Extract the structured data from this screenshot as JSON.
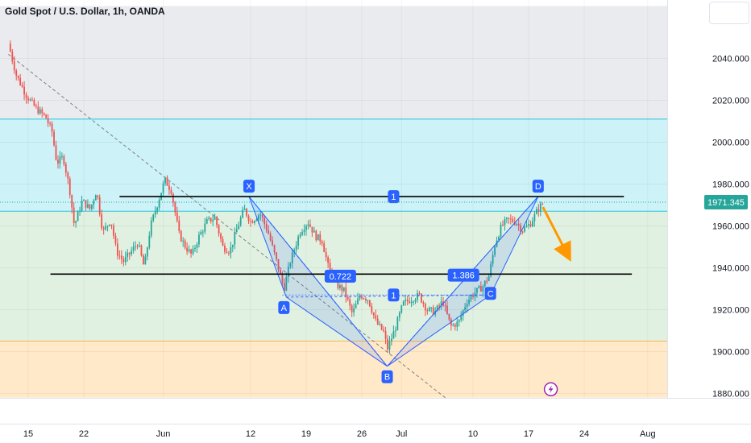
{
  "chart_title": "Gold Spot / U.S. Dollar, 1h, OANDA",
  "price_tag": "1971.345",
  "colors": {
    "up": "#26a69a",
    "down": "#ef5350",
    "zone_top": "#d9dbe0",
    "zone_cyan": "#b2ebf2",
    "zone_green": "#c8e6c9",
    "zone_orange": "#ffe0b2",
    "pattern": "#2962ff",
    "arrow": "#ff9800",
    "price_tag_bg": "#26a69a"
  },
  "pattern_labels": {
    "x": "X",
    "a": "A",
    "b": "B",
    "c": "C",
    "d": "D"
  },
  "ratio_labels": {
    "xb": "0.722",
    "ad": "1.386",
    "mid_top": "1",
    "mid_bottom": "1"
  },
  "lightning_icon": "lightning-bolt-icon",
  "chart_data": {
    "type": "candlestick",
    "title": "Gold Spot / U.S. Dollar, 1h, OANDA",
    "y_ticks": [
      1880,
      1900,
      1920,
      1940,
      1960,
      1980,
      2000,
      2020,
      2040
    ],
    "y_tick_labels": [
      "1880.000",
      "1900.000",
      "1920.000",
      "1940.000",
      "1960.000",
      "1980.000",
      "2000.000",
      "2020.000",
      "2040.000"
    ],
    "ylim": [
      1878,
      2062
    ],
    "x_ticks": [
      {
        "label": "15",
        "day": 0
      },
      {
        "label": "22",
        "day": 7
      },
      {
        "label": "Jun",
        "day": 17
      },
      {
        "label": "12",
        "day": 28
      },
      {
        "label": "19",
        "day": 35
      },
      {
        "label": "26",
        "day": 42
      },
      {
        "label": "Jul",
        "day": 47
      },
      {
        "label": "10",
        "day": 56
      },
      {
        "label": "17",
        "day": 63
      },
      {
        "label": "24",
        "day": 70
      },
      {
        "label": "Aug",
        "day": 78
      }
    ],
    "xlim": [
      -3,
      78.5
    ],
    "zones": [
      {
        "name": "upper-gray",
        "from": 2011,
        "to": 2065
      },
      {
        "name": "cyan",
        "from": 1967,
        "to": 2011
      },
      {
        "name": "green",
        "from": 1905,
        "to": 1967
      },
      {
        "name": "orange",
        "from": 1878,
        "to": 1905
      }
    ],
    "hlines": [
      {
        "name": "resistance",
        "value": 1974,
        "from_day": 11.5,
        "to_day": 75
      },
      {
        "name": "support",
        "value": 1937,
        "from_day": 2.8,
        "to_day": 76
      },
      {
        "name": "mid",
        "value": 1927,
        "from_day": 32,
        "to_day": 58
      }
    ],
    "trendline": [
      [
        -2.5,
        2042
      ],
      [
        52.5,
        1878
      ]
    ],
    "harmonic": [
      {
        "point": "X",
        "day": 27.8,
        "price": 1974
      },
      {
        "point": "A",
        "day": 32.5,
        "price": 1926
      },
      {
        "point": "B",
        "day": 45.2,
        "price": 1893
      },
      {
        "point": "C",
        "day": 58.2,
        "price": 1927
      },
      {
        "point": "D",
        "day": 64.2,
        "price": 1974
      }
    ],
    "forecast_arrow": [
      [
        64.8,
        1969
      ],
      [
        67.8,
        1947
      ]
    ],
    "last_price": 1971.345,
    "path": [
      [
        -2.5,
        2047
      ],
      [
        -1.5,
        2032
      ],
      [
        -0.2,
        2022
      ],
      [
        1,
        2016
      ],
      [
        2.2,
        2012
      ],
      [
        3,
        2005
      ],
      [
        3.6,
        1990
      ],
      [
        4.4,
        1993
      ],
      [
        5.2,
        1978
      ],
      [
        5.8,
        1960
      ],
      [
        6.8,
        1972
      ],
      [
        7.8,
        1968
      ],
      [
        8.6,
        1977
      ],
      [
        9.4,
        1957
      ],
      [
        10.4,
        1963
      ],
      [
        11.1,
        1948
      ],
      [
        12,
        1943
      ],
      [
        12.8,
        1947
      ],
      [
        13.8,
        1952
      ],
      [
        14.6,
        1940
      ],
      [
        15.4,
        1960
      ],
      [
        16.4,
        1972
      ],
      [
        17.2,
        1982
      ],
      [
        18,
        1977
      ],
      [
        19,
        1956
      ],
      [
        19.8,
        1950
      ],
      [
        20.6,
        1946
      ],
      [
        21.5,
        1955
      ],
      [
        22.5,
        1962
      ],
      [
        23.5,
        1964
      ],
      [
        24.5,
        1950
      ],
      [
        25.4,
        1948
      ],
      [
        26.4,
        1960
      ],
      [
        27.2,
        1968
      ],
      [
        28,
        1962
      ],
      [
        29.2,
        1966
      ],
      [
        30.2,
        1957
      ],
      [
        31.2,
        1944
      ],
      [
        32.2,
        1930
      ],
      [
        33,
        1943
      ],
      [
        34.2,
        1957
      ],
      [
        35.2,
        1962
      ],
      [
        36.2,
        1955
      ],
      [
        37,
        1953
      ],
      [
        37.8,
        1940
      ],
      [
        38.8,
        1932
      ],
      [
        39.8,
        1929
      ],
      [
        40.8,
        1918
      ],
      [
        41.8,
        1927
      ],
      [
        42.8,
        1925
      ],
      [
        43.8,
        1914
      ],
      [
        44.8,
        1909
      ],
      [
        45.2,
        1901
      ],
      [
        46.2,
        1911
      ],
      [
        47.2,
        1923
      ],
      [
        48.2,
        1925
      ],
      [
        49.2,
        1927
      ],
      [
        50.2,
        1920
      ],
      [
        51.2,
        1919
      ],
      [
        52.2,
        1924
      ],
      [
        53.2,
        1912
      ],
      [
        54.2,
        1914
      ],
      [
        55.2,
        1924
      ],
      [
        56.2,
        1928
      ],
      [
        57.2,
        1931
      ],
      [
        58,
        1936
      ],
      [
        58.8,
        1952
      ],
      [
        59.6,
        1960
      ],
      [
        60.4,
        1963
      ],
      [
        61.4,
        1962
      ],
      [
        62.2,
        1958
      ],
      [
        63.2,
        1961
      ],
      [
        64.2,
        1968
      ],
      [
        64.8,
        1971
      ]
    ]
  }
}
